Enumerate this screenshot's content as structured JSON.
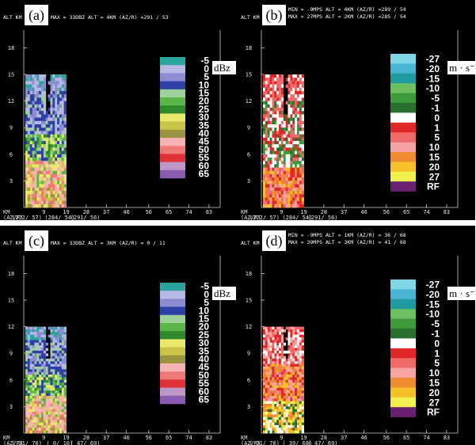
{
  "panels": [
    {
      "letter": "(a)",
      "header": [
        "MAX = 33DBZ   ALT = 4KM   (AZ/R) =291 / 53"
      ],
      "alt_label": "ALT KM",
      "km_label": "KM",
      "azr_label": "(AZ/R)",
      "azr_values": [
        "(272/ 57)",
        "(284/ 54)",
        "(291/ 56)"
      ],
      "unit": "dBz",
      "cbar": "dbz"
    },
    {
      "letter": "(b)",
      "header": [
        "MIN = -9MPS   ALT = 4KM   (AZ/R) =289 / 54",
        "MAX = 27MPS   ALT = 2KM   (AZ/R) =285 / 54"
      ],
      "alt_label": "ALT KM",
      "km_label": "KM",
      "azr_label": "(AZ/R)",
      "azr_values": [
        "(272/ 57)",
        "(284/ 54)",
        "(291/ 56)"
      ],
      "unit": "m · s⁻¹",
      "cbar": "vel"
    },
    {
      "letter": "(c)",
      "header": [
        "MAX = 33DBZ   ALT = 3KM   (AZ/R) = 0 / 11"
      ],
      "alt_label": "ALT KM",
      "km_label": "KM",
      "azr_label": "(AZ/R)",
      "azr_values": [
        "( 31/ 70)",
        "( 0/ 10)",
        "( 47/ 69)"
      ],
      "unit": "dBz",
      "cbar": "dbz"
    },
    {
      "letter": "(d)",
      "header": [
        "MIN = -9MPS   ALT = 1KM   (AZ/R) = 36 / 68",
        "MAX = 39MPS   ALT = 3KM   (AZ/R) = 41 / 68"
      ],
      "alt_label": "ALT KM",
      "km_label": "KM",
      "azr_label": "(AZ/R)",
      "azr_values": [
        "( 31/ 70)",
        "( 39/ 68)",
        "( 47/ 69)"
      ],
      "unit": "m · s⁻¹",
      "cbar": "vel"
    }
  ],
  "colorbars": {
    "dbz": {
      "labels": [
        "-5",
        "0",
        "5",
        "10",
        "15",
        "20",
        "25",
        "30",
        "35",
        "40",
        "45",
        "50",
        "55",
        "60",
        "65"
      ],
      "colors": [
        "#2aa59d",
        "#b8b8e6",
        "#8c8cd0",
        "#2e3fa8",
        "#9fd19a",
        "#5cb64a",
        "#2f8a2e",
        "#e8e86a",
        "#c9c54a",
        "#9a9440",
        "#f7b3b3",
        "#f07a7a",
        "#e0303a",
        "#bf96c8",
        "#8a5bb0"
      ]
    },
    "vel": {
      "labels": [
        "-27",
        "-20",
        "-15",
        "-10",
        "-5",
        "-1",
        "0",
        "1",
        "5",
        "10",
        "15",
        "20",
        "27",
        "RF"
      ],
      "colors": [
        "#7fd6e6",
        "#4ab4d4",
        "#1f9a9e",
        "#6cc060",
        "#3c9a3a",
        "#2a6e30",
        "#ffffff",
        "#e02828",
        "#f06a6a",
        "#f7a3a3",
        "#f08a30",
        "#f5c02a",
        "#f0f050",
        "#6a2070"
      ]
    }
  },
  "chart_data": [
    {
      "type": "heatmap",
      "panel": "(a)",
      "title": "MAX = 33DBZ   ALT = 4KM   (AZ/R) =291 / 53",
      "xlabel": "KM",
      "ylabel": "ALT KM",
      "x_ticks": [
        9,
        19,
        28,
        37,
        46,
        56,
        65,
        74,
        83
      ],
      "y_ticks": [
        3,
        6,
        9,
        12,
        15,
        18
      ],
      "xlim": [
        0,
        88
      ],
      "ylim": [
        0,
        20
      ],
      "data_extent_km": [
        0,
        19
      ],
      "data_top_alt_km": 15,
      "colorbar_unit": "dBz"
    },
    {
      "type": "heatmap",
      "panel": "(b)",
      "title": "MIN = -9MPS   ALT = 4KM   (AZ/R) =289 / 54 ; MAX = 27MPS   ALT = 2KM   (AZ/R) =285 / 54",
      "xlabel": "KM",
      "ylabel": "ALT KM",
      "x_ticks": [
        9,
        19,
        28,
        37,
        46,
        56,
        65,
        74,
        83
      ],
      "y_ticks": [
        3,
        6,
        9,
        12,
        15,
        18
      ],
      "xlim": [
        0,
        88
      ],
      "ylim": [
        0,
        20
      ],
      "data_extent_km": [
        0,
        19
      ],
      "data_top_alt_km": 15,
      "colorbar_unit": "m · s⁻¹"
    },
    {
      "type": "heatmap",
      "panel": "(c)",
      "title": "MAX = 33DBZ   ALT = 3KM   (AZ/R) = 0 / 11",
      "xlabel": "KM",
      "ylabel": "ALT KM",
      "x_ticks": [
        9,
        19,
        28,
        37,
        46,
        56,
        65,
        74,
        83
      ],
      "y_ticks": [
        3,
        6,
        9,
        12,
        15,
        18
      ],
      "xlim": [
        0,
        88
      ],
      "ylim": [
        0,
        20
      ],
      "data_extent_km": [
        0,
        19
      ],
      "data_top_alt_km": 12,
      "colorbar_unit": "dBz"
    },
    {
      "type": "heatmap",
      "panel": "(d)",
      "title": "MIN = -9MPS   ALT = 1KM   (AZ/R) = 36 / 68 ; MAX = 39MPS   ALT = 3KM   (AZ/R) = 41 / 68",
      "xlabel": "KM",
      "ylabel": "ALT KM",
      "x_ticks": [
        9,
        19,
        28,
        37,
        46,
        56,
        65,
        74,
        83
      ],
      "y_ticks": [
        3,
        6,
        9,
        12,
        15,
        18
      ],
      "xlim": [
        0,
        88
      ],
      "ylim": [
        0,
        20
      ],
      "data_extent_km": [
        0,
        19
      ],
      "data_top_alt_km": 12,
      "colorbar_unit": "m · s⁻¹"
    }
  ]
}
